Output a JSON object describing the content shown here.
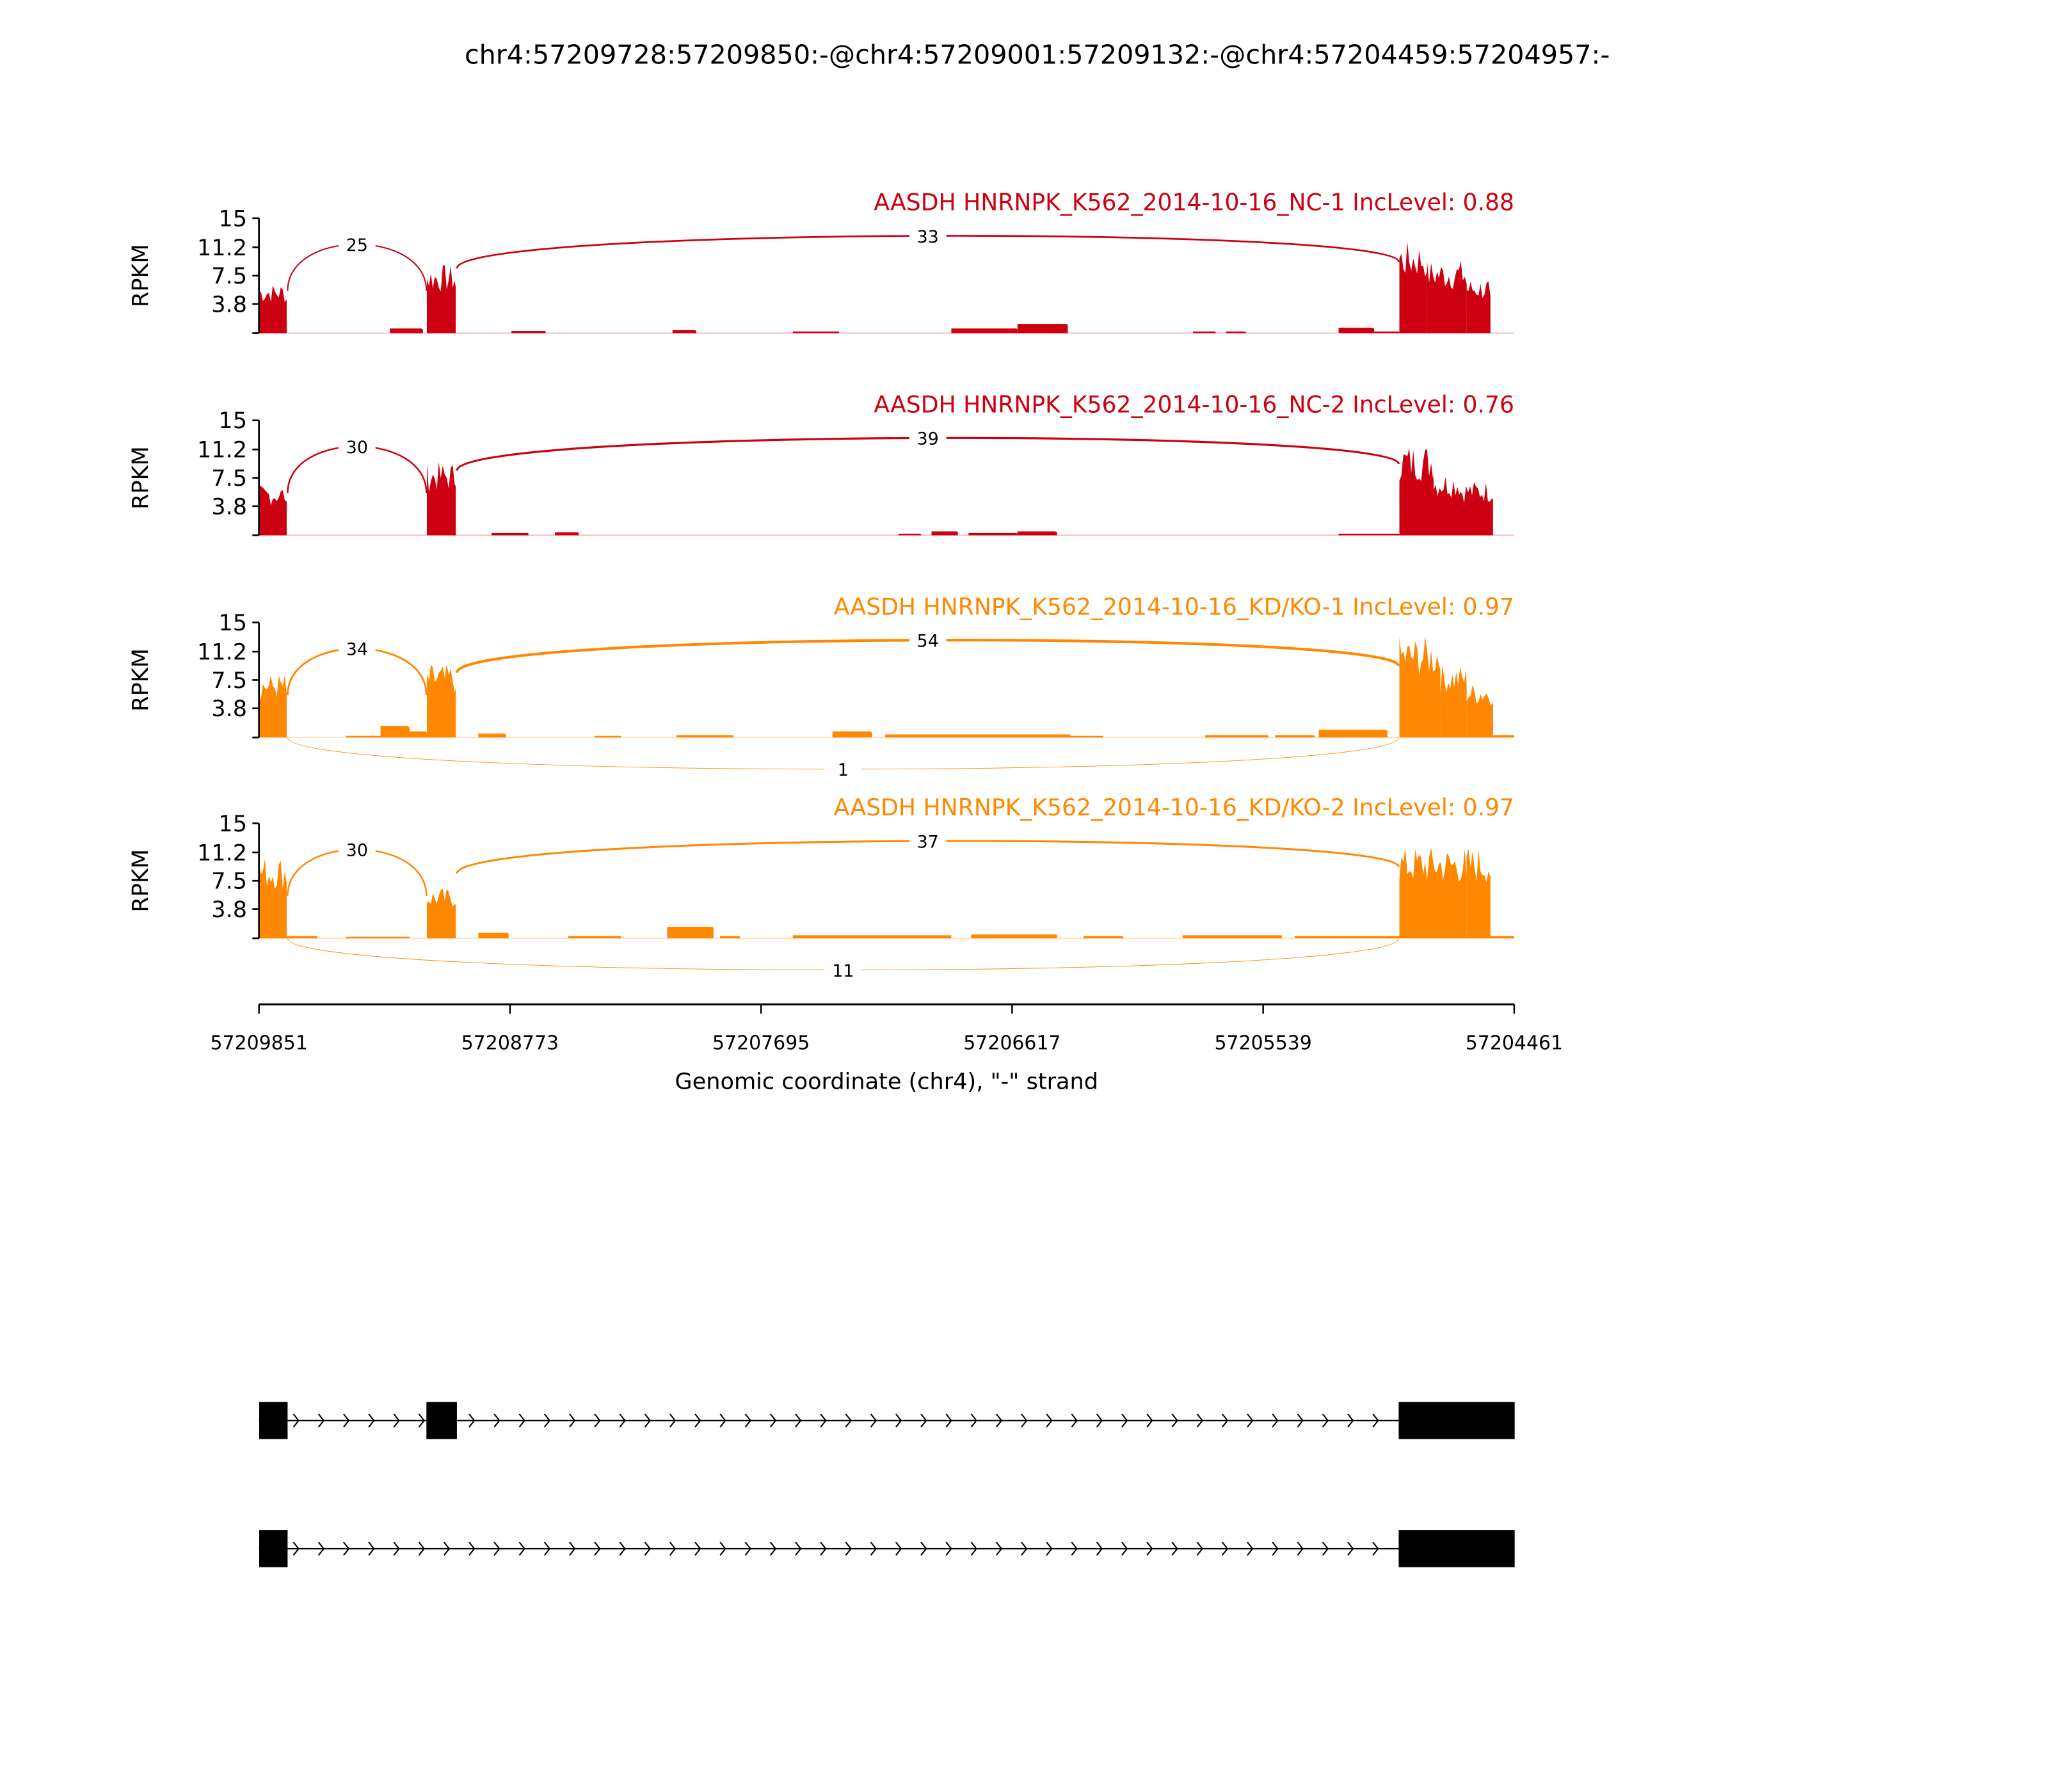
{
  "chart_data": {
    "type": "area",
    "subtype": "sashimi",
    "title": "chr4:57209728:57209850:-@chr4:57209001:57209132:-@chr4:57204459:57204957:-",
    "xlabel": "Genomic coordinate (chr4), \"-\" strand",
    "ylabel": "RPKM",
    "xlim": [
      57209851,
      57204461
    ],
    "xticks": [
      "57209851",
      "57208773",
      "57207695",
      "57206617",
      "57205539",
      "57204461"
    ],
    "ylim": [
      0,
      15
    ],
    "yticks": [
      "15",
      "11.2",
      "7.5",
      "3.8"
    ],
    "ytick_values": [
      15,
      11.2,
      7.5,
      3.8
    ],
    "exons": [
      [
        57209850,
        57209728
      ],
      [
        57209132,
        57209001
      ],
      [
        57204957,
        57204459
      ]
    ],
    "tracks": [
      {
        "label": "AASDH HNRNPK_K562_2014-10-16_NC-1 IncLevel: 0.88",
        "color": "#CC0011",
        "coverage": [
          [
            57209851,
            57209732,
            5.5
          ],
          [
            57209289,
            57209147,
            0.6
          ],
          [
            57209130,
            57209006,
            7.5
          ],
          [
            57208767,
            57208620,
            0.3
          ],
          [
            57208075,
            57207973,
            0.4
          ],
          [
            57207559,
            57207360,
            0.2
          ],
          [
            57206878,
            57206594,
            0.6
          ],
          [
            57206594,
            57206378,
            1.2
          ],
          [
            57205840,
            57205743,
            0.2
          ],
          [
            57205698,
            57205613,
            0.2
          ],
          [
            57205215,
            57205062,
            0.7
          ],
          [
            57205062,
            57204954,
            0.2
          ],
          [
            57204954,
            57204835,
            10
          ],
          [
            57204835,
            57204665,
            8
          ],
          [
            57204665,
            57204563,
            6
          ]
        ],
        "junctions": [
          {
            "from": 57209728,
            "to": 57209132,
            "count": "25",
            "side": "above"
          },
          {
            "from": 57209001,
            "to": 57204957,
            "count": "33",
            "side": "above"
          }
        ]
      },
      {
        "label": "AASDH HNRNPK_K562_2014-10-16_NC-2 IncLevel: 0.76",
        "color": "#CC0011",
        "coverage": [
          [
            57209851,
            57209732,
            5.5
          ],
          [
            57209130,
            57209006,
            8
          ],
          [
            57208852,
            57208694,
            0.3
          ],
          [
            57208580,
            57208478,
            0.4
          ],
          [
            57207105,
            57207008,
            0.2
          ],
          [
            57206963,
            57206850,
            0.5
          ],
          [
            57206804,
            57206594,
            0.3
          ],
          [
            57206594,
            57206424,
            0.5
          ],
          [
            57205215,
            57204954,
            0.2
          ],
          [
            57204954,
            57204807,
            10
          ],
          [
            57204807,
            57204693,
            7
          ],
          [
            57204693,
            57204552,
            6
          ]
        ],
        "junctions": [
          {
            "from": 57209728,
            "to": 57209132,
            "count": "30",
            "side": "above"
          },
          {
            "from": 57209001,
            "to": 57204957,
            "count": "39",
            "side": "above"
          }
        ]
      },
      {
        "label": "AASDH HNRNPK_K562_2014-10-16_KD/KO-1 IncLevel: 0.97",
        "color": "#FF8800",
        "coverage": [
          [
            57209851,
            57209732,
            7
          ],
          [
            57209477,
            57209329,
            0.2
          ],
          [
            57209329,
            57209204,
            1.5
          ],
          [
            57209204,
            57209130,
            0.8
          ],
          [
            57209130,
            57209006,
            8
          ],
          [
            57208909,
            57208790,
            0.5
          ],
          [
            57208410,
            57208296,
            0.2
          ],
          [
            57208058,
            57207814,
            0.3
          ],
          [
            57207388,
            57207218,
            0.8
          ],
          [
            57207162,
            57206367,
            0.4
          ],
          [
            57206367,
            57206225,
            0.2
          ],
          [
            57205788,
            57205516,
            0.3
          ],
          [
            57205488,
            57205318,
            0.3
          ],
          [
            57205300,
            57205005,
            1
          ],
          [
            57204954,
            57204778,
            11
          ],
          [
            57204778,
            57204665,
            8
          ],
          [
            57204665,
            57204552,
            6
          ],
          [
            57204552,
            57204461,
            0.3
          ]
        ],
        "junctions": [
          {
            "from": 57209728,
            "to": 57209132,
            "count": "34",
            "side": "above"
          },
          {
            "from": 57209001,
            "to": 57204957,
            "count": "54",
            "side": "above"
          },
          {
            "from": 57209728,
            "to": 57204957,
            "count": "1",
            "side": "below"
          }
        ]
      },
      {
        "label": "AASDH HNRNPK_K562_2014-10-16_KD/KO-2 IncLevel: 0.97",
        "color": "#FF8800",
        "coverage": [
          [
            57209851,
            57209732,
            9
          ],
          [
            57209732,
            57209601,
            0.3
          ],
          [
            57209477,
            57209204,
            0.2
          ],
          [
            57209130,
            57209006,
            5.5
          ],
          [
            57208909,
            57208779,
            0.7
          ],
          [
            57208523,
            57208296,
            0.3
          ],
          [
            57208098,
            57207899,
            1.5
          ],
          [
            57207871,
            57207786,
            0.3
          ],
          [
            57207559,
            57206878,
            0.4
          ],
          [
            57206793,
            57206424,
            0.5
          ],
          [
            57206310,
            57206140,
            0.3
          ],
          [
            57205885,
            57205459,
            0.4
          ],
          [
            57205403,
            57204954,
            0.3
          ],
          [
            57204954,
            57204665,
            10
          ],
          [
            57204665,
            57204563,
            10
          ],
          [
            57204563,
            57204461,
            0.3
          ]
        ],
        "junctions": [
          {
            "from": 57209728,
            "to": 57209132,
            "count": "30",
            "side": "above"
          },
          {
            "from": 57209001,
            "to": 57204957,
            "count": "37",
            "side": "above"
          },
          {
            "from": 57209728,
            "to": 57204957,
            "count": "11",
            "side": "below"
          }
        ]
      }
    ],
    "gene_models": [
      {
        "exons": [
          [
            57209850,
            57209728
          ],
          [
            57209132,
            57209001
          ],
          [
            57204957,
            57204459
          ]
        ]
      },
      {
        "exons": [
          [
            57209850,
            57209728
          ],
          [
            57204957,
            57204459
          ]
        ]
      }
    ]
  }
}
